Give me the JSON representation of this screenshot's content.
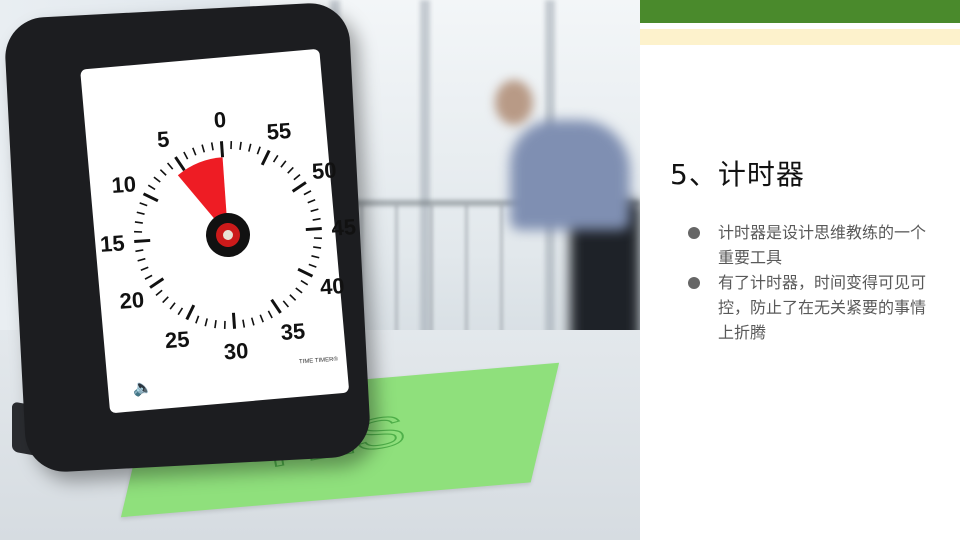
{
  "slide": {
    "title": "5、计时器",
    "bullets": [
      "计时器是设计思维教练的一个重要工具",
      "有了计时器，时间变得可见可控，防止了在无关紧要的事情上折腾"
    ]
  },
  "photo": {
    "dial_labels": [
      "0",
      "5",
      "10",
      "15",
      "20",
      "25",
      "30",
      "35",
      "40",
      "45",
      "50",
      "55"
    ],
    "brand_text": "TIME TIMER®",
    "sticky_note_text": "YES"
  },
  "colors": {
    "band_green": "#4a8a2c",
    "band_light": "#fdf2cc",
    "timer_red": "#ee1c24",
    "sticky_green": "#8fe07c"
  }
}
